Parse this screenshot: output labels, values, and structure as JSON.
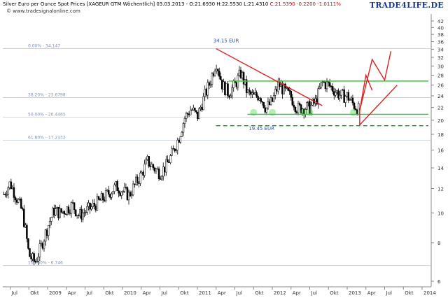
{
  "header": {
    "title": "Silver Euro per Ounce Spot Prices [XAGEUR GTM  Wöchentlich] 03.03.2013 - O:21.6930 H:22.5530 L:21.4310",
    "close_change": "C:21.5390 -0.2200 -1.0111%",
    "source": "© www.tradesignalonline.com",
    "brand": "TRADE4LIFE.DE"
  },
  "colors": {
    "candle_up": "#ffffff",
    "candle_down": "#000000",
    "trend_red": "#e02020",
    "support_green": "#2ecc2e",
    "dashed_green": "#1a9a1a",
    "fib_line": "#c0c8e8",
    "label_blue": "#2b4fbf"
  },
  "chart_data": {
    "type": "candlestick",
    "title": "Silver Euro per Ounce Spot Prices [XAGEUR GTM Wöchentlich]",
    "ylabel": "",
    "ylim": [
      5.5,
      43
    ],
    "y_scale": "log",
    "y_ticks": [
      6,
      8,
      10,
      12,
      14,
      16,
      18,
      20,
      22,
      24,
      26,
      28,
      30,
      32,
      34,
      36,
      38,
      40,
      42
    ],
    "x_ticks": [
      "Jul",
      "Okt",
      "2009",
      "Apr",
      "Jul",
      "Okt",
      "2010",
      "Apr",
      "Jul",
      "Okt",
      "2011",
      "Apr",
      "Jul",
      "Okt",
      "2012",
      "Apr",
      "Jul",
      "Okt",
      "2013",
      "Apr",
      "Jul",
      "Okt",
      "2014"
    ],
    "grid": false,
    "fib_levels": [
      {
        "label": "0.00% - 34.147",
        "value": 34.147
      },
      {
        "label": "38.20% - 23.6798",
        "value": 23.6798
      },
      {
        "label": "50.00% - 20.4465",
        "value": 20.4465
      },
      {
        "label": "61.80% - 17.2132",
        "value": 17.2132
      },
      {
        "label": "100.00% - 6.746",
        "value": 6.746
      }
    ],
    "annotations": [
      {
        "text": "34.15 EUR",
        "value": 34.15
      },
      {
        "text": "19.45 EUR",
        "value": 19.45
      }
    ],
    "support_lines": [
      {
        "value": 26.8,
        "style": "solid",
        "color": "green"
      },
      {
        "value": 20.9,
        "style": "solid",
        "color": "green"
      },
      {
        "value": 19.2,
        "style": "dashed",
        "color": "green"
      }
    ],
    "anchors": [
      {
        "x": "2008-06",
        "y": 11.5
      },
      {
        "x": "2008-07",
        "y": 12.5
      },
      {
        "x": "2008-09",
        "y": 10.0
      },
      {
        "x": "2008-10",
        "y": 7.3
      },
      {
        "x": "2008-11",
        "y": 6.9
      },
      {
        "x": "2008-12",
        "y": 7.8
      },
      {
        "x": "2009-02",
        "y": 10.2
      },
      {
        "x": "2009-03",
        "y": 10.0
      },
      {
        "x": "2009-05",
        "y": 10.6
      },
      {
        "x": "2009-06",
        "y": 9.8
      },
      {
        "x": "2009-08",
        "y": 10.4
      },
      {
        "x": "2009-10",
        "y": 11.2
      },
      {
        "x": "2009-12",
        "y": 12.2
      },
      {
        "x": "2010-02",
        "y": 11.4
      },
      {
        "x": "2010-04",
        "y": 13.3
      },
      {
        "x": "2010-05",
        "y": 14.7
      },
      {
        "x": "2010-06",
        "y": 14.0
      },
      {
        "x": "2010-07",
        "y": 13.5
      },
      {
        "x": "2010-08",
        "y": 14.2
      },
      {
        "x": "2010-09",
        "y": 15.6
      },
      {
        "x": "2010-10",
        "y": 17.5
      },
      {
        "x": "2010-11",
        "y": 20.4
      },
      {
        "x": "2010-12",
        "y": 21.8
      },
      {
        "x": "2011-01",
        "y": 20.5
      },
      {
        "x": "2011-02",
        "y": 23.5
      },
      {
        "x": "2011-03",
        "y": 26.5
      },
      {
        "x": "2011-04",
        "y": 31.0
      },
      {
        "x": "2011-05",
        "y": 26.0
      },
      {
        "x": "2011-06",
        "y": 24.5
      },
      {
        "x": "2011-07",
        "y": 26.0
      },
      {
        "x": "2011-08",
        "y": 28.5
      },
      {
        "x": "2011-09",
        "y": 24.5
      },
      {
        "x": "2011-10",
        "y": 23.8
      },
      {
        "x": "2011-11",
        "y": 24.2
      },
      {
        "x": "2011-12",
        "y": 21.8
      },
      {
        "x": "2012-01",
        "y": 23.0
      },
      {
        "x": "2012-02",
        "y": 26.2
      },
      {
        "x": "2012-03",
        "y": 24.8
      },
      {
        "x": "2012-04",
        "y": 23.8
      },
      {
        "x": "2012-05",
        "y": 21.8
      },
      {
        "x": "2012-06",
        "y": 22.0
      },
      {
        "x": "2012-07",
        "y": 22.0
      },
      {
        "x": "2012-08",
        "y": 23.0
      },
      {
        "x": "2012-09",
        "y": 26.5
      },
      {
        "x": "2012-10",
        "y": 26.0
      },
      {
        "x": "2012-11",
        "y": 25.0
      },
      {
        "x": "2012-12",
        "y": 24.0
      },
      {
        "x": "2013-01",
        "y": 24.0
      },
      {
        "x": "2013-02",
        "y": 22.5
      },
      {
        "x": "2013-03",
        "y": 21.5
      }
    ],
    "projection_arrows": [
      [
        {
          "x": "2013-03",
          "y": 21.5
        },
        {
          "x": "2013-05",
          "y": 31.5
        },
        {
          "x": "2013-07",
          "y": 27.0
        },
        {
          "x": "2013-08",
          "y": 33.5
        }
      ],
      [
        {
          "x": "2013-03",
          "y": 21.5
        },
        {
          "x": "2013-04",
          "y": 28.0
        },
        {
          "x": "2013-05",
          "y": 25.0
        }
      ],
      [
        {
          "x": "2013-03",
          "y": 21.5
        },
        {
          "x": "2013-03",
          "y": 19.3
        },
        {
          "x": "2013-09",
          "y": 26.0
        }
      ]
    ]
  }
}
